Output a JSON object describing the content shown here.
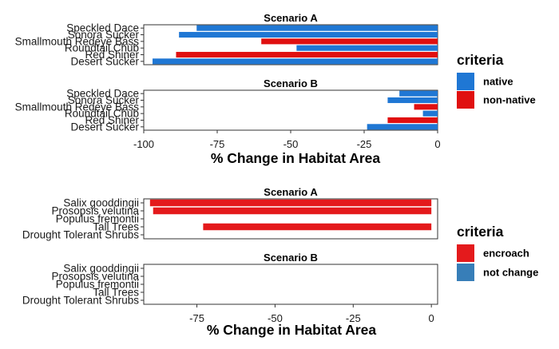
{
  "chart_data": [
    {
      "type": "bar",
      "orientation": "horizontal",
      "facets": [
        {
          "title": "Scenario A",
          "categories": [
            "Speckled Dace",
            "Sonora Sucker",
            "Smallmouth Redeye Bass",
            "Roundtail Chub",
            "Red Shiner",
            "Desert Sucker"
          ],
          "series": [
            {
              "key": "native",
              "values": [
                -82,
                -88,
                null,
                -48,
                null,
                -97
              ]
            },
            {
              "key": "non-native",
              "values": [
                null,
                null,
                -60,
                null,
                -89,
                null
              ]
            }
          ]
        },
        {
          "title": "Scenario B",
          "categories": [
            "Speckled Dace",
            "Sonora Sucker",
            "Smallmouth Redeye Bass",
            "Roundtail Chub",
            "Red Shiner",
            "Desert Sucker"
          ],
          "series": [
            {
              "key": "native",
              "values": [
                -13,
                -17,
                null,
                -5,
                null,
                -24
              ]
            },
            {
              "key": "non-native",
              "values": [
                null,
                null,
                -8,
                null,
                -17,
                null
              ]
            }
          ]
        }
      ],
      "xlabel": "% Change in Habitat Area",
      "xlim": [
        -100,
        0
      ],
      "xticks": [
        -100,
        -75,
        -50,
        -25,
        0
      ],
      "legend": {
        "title": "criteria",
        "placement": "right",
        "entries": [
          {
            "label": "native",
            "color": "#1f77d4"
          },
          {
            "label": "non-native",
            "color": "#e01010"
          }
        ]
      }
    },
    {
      "type": "bar",
      "orientation": "horizontal",
      "facets": [
        {
          "title": "Scenario A",
          "categories": [
            "Salix gooddingii",
            "Prosopsis velutina",
            "Populus fremontii",
            "Tall Trees",
            "Drought Tolerant Shrubs"
          ],
          "series": [
            {
              "key": "encroach",
              "values": [
                -90,
                -89,
                null,
                -73,
                null
              ]
            },
            {
              "key": "not change",
              "values": [
                null,
                null,
                null,
                null,
                null
              ]
            }
          ]
        },
        {
          "title": "Scenario B",
          "categories": [
            "Salix gooddingii",
            "Prosopsis velutina",
            "Populus fremontii",
            "Tall Trees",
            "Drought Tolerant Shrubs"
          ],
          "series": [
            {
              "key": "encroach",
              "values": [
                null,
                null,
                null,
                null,
                null
              ]
            },
            {
              "key": "not change",
              "values": [
                null,
                null,
                null,
                null,
                null
              ]
            }
          ]
        }
      ],
      "xlabel": "% Change in Habitat Area",
      "xlim": [
        -92,
        2
      ],
      "xticks": [
        -75,
        -50,
        -25,
        0
      ],
      "legend": {
        "title": "criteria",
        "placement": "right",
        "entries": [
          {
            "label": "encroach",
            "color": "#e41a1c"
          },
          {
            "label": "not change",
            "color": "#377eb8"
          }
        ]
      }
    }
  ]
}
